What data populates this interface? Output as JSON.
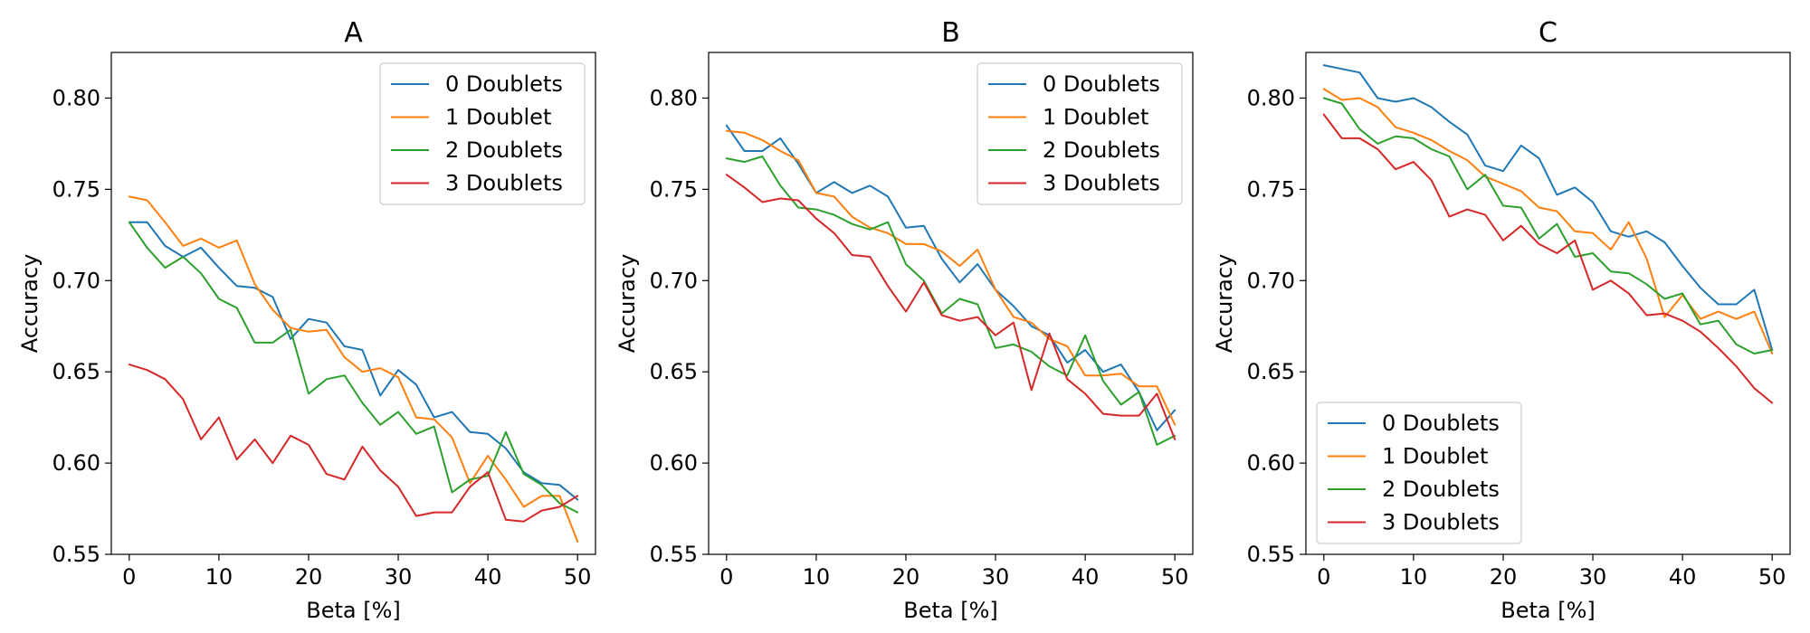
{
  "chart_data": [
    {
      "type": "line",
      "title": "A",
      "xlabel": "Beta [%]",
      "ylabel": "Accuracy",
      "xlim": [
        -2,
        52
      ],
      "ylim": [
        0.55,
        0.825
      ],
      "xticks": [
        0,
        10,
        20,
        30,
        40,
        50
      ],
      "yticks": [
        0.55,
        0.6,
        0.65,
        0.7,
        0.75,
        0.8
      ],
      "ytick_labels": [
        "0.55",
        "0.60",
        "0.65",
        "0.70",
        "0.75",
        "0.80"
      ],
      "grid": false,
      "legend_position": "top-right",
      "x": [
        0,
        2,
        4,
        6,
        8,
        10,
        12,
        14,
        16,
        18,
        20,
        22,
        24,
        26,
        28,
        30,
        32,
        34,
        36,
        38,
        40,
        42,
        44,
        46,
        48,
        50
      ],
      "series": [
        {
          "name": "0 Doublets",
          "color": "#1f77b4",
          "values": [
            0.732,
            0.732,
            0.719,
            0.713,
            0.718,
            0.707,
            0.697,
            0.696,
            0.691,
            0.668,
            0.679,
            0.677,
            0.664,
            0.662,
            0.637,
            0.651,
            0.643,
            0.625,
            0.628,
            0.617,
            0.616,
            0.608,
            0.595,
            0.589,
            0.588,
            0.58
          ]
        },
        {
          "name": "1 Doublet",
          "color": "#ff7f0e",
          "values": [
            0.746,
            0.744,
            0.732,
            0.719,
            0.723,
            0.718,
            0.722,
            0.698,
            0.684,
            0.674,
            0.672,
            0.673,
            0.658,
            0.65,
            0.652,
            0.647,
            0.625,
            0.624,
            0.614,
            0.589,
            0.604,
            0.591,
            0.576,
            0.582,
            0.582,
            0.557
          ]
        },
        {
          "name": "2 Doublets",
          "color": "#2ca02c",
          "values": [
            0.732,
            0.718,
            0.707,
            0.713,
            0.704,
            0.69,
            0.685,
            0.666,
            0.666,
            0.673,
            0.638,
            0.646,
            0.648,
            0.633,
            0.621,
            0.628,
            0.616,
            0.62,
            0.584,
            0.591,
            0.593,
            0.617,
            0.594,
            0.588,
            0.578,
            0.573
          ]
        },
        {
          "name": "3 Doublets",
          "color": "#d62728",
          "values": [
            0.654,
            0.651,
            0.646,
            0.635,
            0.613,
            0.625,
            0.602,
            0.613,
            0.6,
            0.615,
            0.61,
            0.594,
            0.591,
            0.609,
            0.596,
            0.587,
            0.571,
            0.573,
            0.573,
            0.587,
            0.595,
            0.569,
            0.568,
            0.574,
            0.576,
            0.582
          ]
        }
      ]
    },
    {
      "type": "line",
      "title": "B",
      "xlabel": "Beta [%]",
      "ylabel": "Accuracy",
      "xlim": [
        -2,
        52
      ],
      "ylim": [
        0.55,
        0.825
      ],
      "xticks": [
        0,
        10,
        20,
        30,
        40,
        50
      ],
      "yticks": [
        0.55,
        0.6,
        0.65,
        0.7,
        0.75,
        0.8
      ],
      "ytick_labels": [
        "0.55",
        "0.60",
        "0.65",
        "0.70",
        "0.75",
        "0.80"
      ],
      "grid": false,
      "legend_position": "top-right",
      "x": [
        0,
        2,
        4,
        6,
        8,
        10,
        12,
        14,
        16,
        18,
        20,
        22,
        24,
        26,
        28,
        30,
        32,
        34,
        36,
        38,
        40,
        42,
        44,
        46,
        48,
        50
      ],
      "series": [
        {
          "name": "0 Doublets",
          "color": "#1f77b4",
          "values": [
            0.785,
            0.771,
            0.771,
            0.778,
            0.764,
            0.748,
            0.754,
            0.748,
            0.752,
            0.746,
            0.729,
            0.73,
            0.712,
            0.699,
            0.709,
            0.695,
            0.686,
            0.675,
            0.67,
            0.655,
            0.662,
            0.65,
            0.654,
            0.639,
            0.618,
            0.629
          ]
        },
        {
          "name": "1 Doublet",
          "color": "#ff7f0e",
          "values": [
            0.782,
            0.781,
            0.777,
            0.771,
            0.766,
            0.748,
            0.746,
            0.735,
            0.729,
            0.726,
            0.72,
            0.72,
            0.716,
            0.708,
            0.717,
            0.695,
            0.68,
            0.677,
            0.668,
            0.664,
            0.648,
            0.648,
            0.649,
            0.642,
            0.642,
            0.621
          ]
        },
        {
          "name": "2 Doublets",
          "color": "#2ca02c",
          "values": [
            0.767,
            0.765,
            0.768,
            0.752,
            0.74,
            0.739,
            0.736,
            0.731,
            0.728,
            0.732,
            0.709,
            0.7,
            0.682,
            0.69,
            0.687,
            0.663,
            0.665,
            0.661,
            0.653,
            0.648,
            0.67,
            0.645,
            0.632,
            0.639,
            0.61,
            0.615
          ]
        },
        {
          "name": "3 Doublets",
          "color": "#d62728",
          "values": [
            0.758,
            0.751,
            0.743,
            0.745,
            0.744,
            0.734,
            0.726,
            0.714,
            0.713,
            0.697,
            0.683,
            0.699,
            0.681,
            0.678,
            0.68,
            0.67,
            0.677,
            0.64,
            0.671,
            0.646,
            0.638,
            0.627,
            0.626,
            0.626,
            0.638,
            0.613
          ]
        }
      ]
    },
    {
      "type": "line",
      "title": "C",
      "xlabel": "Beta [%]",
      "ylabel": "Accuracy",
      "xlim": [
        -2,
        52
      ],
      "ylim": [
        0.55,
        0.825
      ],
      "xticks": [
        0,
        10,
        20,
        30,
        40,
        50
      ],
      "yticks": [
        0.55,
        0.6,
        0.65,
        0.7,
        0.75,
        0.8
      ],
      "ytick_labels": [
        "0.55",
        "0.60",
        "0.65",
        "0.70",
        "0.75",
        "0.80"
      ],
      "grid": false,
      "legend_position": "bottom-left",
      "x": [
        0,
        2,
        4,
        6,
        8,
        10,
        12,
        14,
        16,
        18,
        20,
        22,
        24,
        26,
        28,
        30,
        32,
        34,
        36,
        38,
        40,
        42,
        44,
        46,
        48,
        50
      ],
      "series": [
        {
          "name": "0 Doublets",
          "color": "#1f77b4",
          "values": [
            0.818,
            0.816,
            0.814,
            0.8,
            0.798,
            0.8,
            0.795,
            0.787,
            0.78,
            0.763,
            0.76,
            0.774,
            0.767,
            0.747,
            0.751,
            0.743,
            0.727,
            0.724,
            0.727,
            0.721,
            0.708,
            0.696,
            0.687,
            0.687,
            0.695,
            0.662
          ]
        },
        {
          "name": "1 Doublet",
          "color": "#ff7f0e",
          "values": [
            0.805,
            0.799,
            0.8,
            0.795,
            0.784,
            0.781,
            0.777,
            0.771,
            0.766,
            0.757,
            0.753,
            0.749,
            0.74,
            0.738,
            0.727,
            0.726,
            0.717,
            0.732,
            0.712,
            0.68,
            0.692,
            0.679,
            0.683,
            0.679,
            0.683,
            0.66
          ]
        },
        {
          "name": "2 Doublets",
          "color": "#2ca02c",
          "values": [
            0.8,
            0.797,
            0.783,
            0.775,
            0.779,
            0.778,
            0.772,
            0.768,
            0.75,
            0.758,
            0.741,
            0.74,
            0.723,
            0.731,
            0.713,
            0.715,
            0.705,
            0.704,
            0.698,
            0.69,
            0.693,
            0.676,
            0.678,
            0.665,
            0.66,
            0.662
          ]
        },
        {
          "name": "3 Doublets",
          "color": "#d62728",
          "values": [
            0.791,
            0.778,
            0.778,
            0.772,
            0.761,
            0.765,
            0.755,
            0.735,
            0.739,
            0.736,
            0.722,
            0.73,
            0.72,
            0.715,
            0.722,
            0.695,
            0.7,
            0.693,
            0.681,
            0.682,
            0.678,
            0.672,
            0.663,
            0.653,
            0.641,
            0.633
          ]
        }
      ]
    }
  ]
}
